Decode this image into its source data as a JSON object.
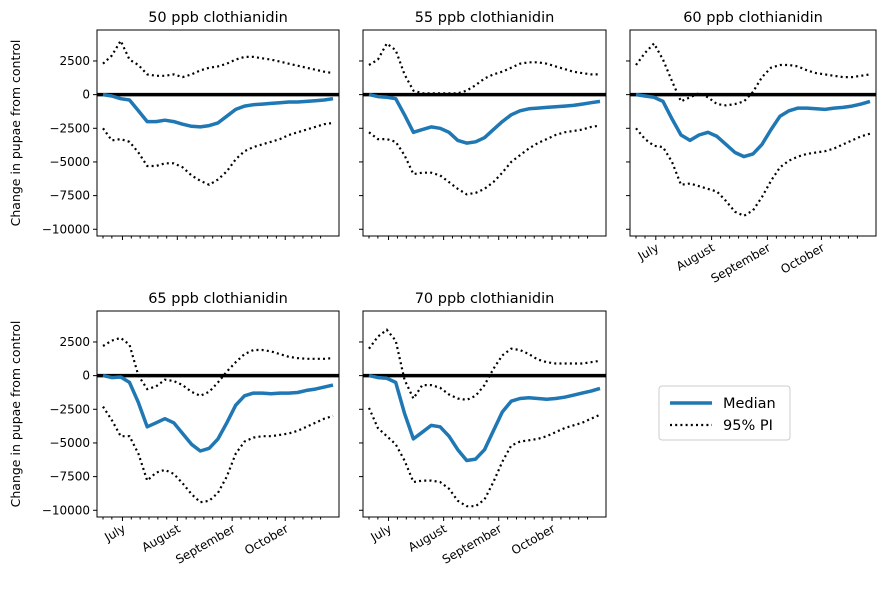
{
  "figure": {
    "ylabel": "Change in pupae from control",
    "legend": {
      "placement": "center-right",
      "median_label": "Median",
      "pi_label": "95% PI"
    },
    "colors": {
      "median": "#1f77b4",
      "pi": "#000000",
      "zero_line": "#000000"
    }
  },
  "chart_data": [
    {
      "type": "line",
      "title": "50 ppb clothianidin",
      "xlabel": "",
      "ylabel": "Change in pupae from control",
      "x_ticks": [],
      "y_ticks": [
        "2500",
        "0",
        "−2500",
        "−5000",
        "−7500",
        "−10000"
      ],
      "ylim": [
        -10500,
        4800
      ],
      "x": [
        "Jun 20",
        "Jun 25",
        "Jun 30",
        "Jul 5",
        "Jul 10",
        "Jul 15",
        "Jul 20",
        "Jul 25",
        "Jul 30",
        "Aug 4",
        "Aug 9",
        "Aug 14",
        "Aug 19",
        "Aug 24",
        "Aug 29",
        "Sep 3",
        "Sep 8",
        "Sep 13",
        "Sep 18",
        "Sep 23",
        "Sep 28",
        "Oct 3",
        "Oct 8",
        "Oct 13",
        "Oct 18",
        "Oct 23",
        "Oct 28"
      ],
      "series": [
        {
          "name": "Median",
          "values": [
            0,
            -100,
            -300,
            -400,
            -1200,
            -2000,
            -2000,
            -1900,
            -2000,
            -2200,
            -2350,
            -2400,
            -2300,
            -2100,
            -1600,
            -1100,
            -850,
            -750,
            -700,
            -650,
            -600,
            -550,
            -550,
            -500,
            -450,
            -400,
            -300
          ]
        },
        {
          "name": "95% PI upper",
          "values": [
            2300,
            2900,
            4000,
            2600,
            2200,
            1500,
            1400,
            1400,
            1500,
            1300,
            1500,
            1800,
            2000,
            2100,
            2300,
            2600,
            2800,
            2800,
            2700,
            2600,
            2450,
            2300,
            2150,
            2000,
            1850,
            1700,
            1600
          ]
        },
        {
          "name": "95% PI lower",
          "values": [
            -2500,
            -3400,
            -3300,
            -3500,
            -4300,
            -5300,
            -5300,
            -5100,
            -5100,
            -5400,
            -6000,
            -6400,
            -6700,
            -6300,
            -5700,
            -4800,
            -4200,
            -3900,
            -3700,
            -3500,
            -3300,
            -3000,
            -2800,
            -2600,
            -2400,
            -2200,
            -2100
          ]
        }
      ]
    },
    {
      "type": "line",
      "title": "55 ppb clothianidin",
      "xlabel": "",
      "ylabel": "",
      "x_ticks": [],
      "y_ticks": [],
      "ylim": [
        -10500,
        4800
      ],
      "x": [
        "Jun 20",
        "Jun 25",
        "Jun 30",
        "Jul 5",
        "Jul 10",
        "Jul 15",
        "Jul 20",
        "Jul 25",
        "Jul 30",
        "Aug 4",
        "Aug 9",
        "Aug 14",
        "Aug 19",
        "Aug 24",
        "Aug 29",
        "Sep 3",
        "Sep 8",
        "Sep 13",
        "Sep 18",
        "Sep 23",
        "Sep 28",
        "Oct 3",
        "Oct 8",
        "Oct 13",
        "Oct 18",
        "Oct 23",
        "Oct 28"
      ],
      "series": [
        {
          "name": "Median",
          "values": [
            0,
            -150,
            -200,
            -300,
            -1500,
            -2800,
            -2600,
            -2400,
            -2500,
            -2800,
            -3400,
            -3600,
            -3500,
            -3200,
            -2600,
            -2000,
            -1500,
            -1200,
            -1050,
            -1000,
            -950,
            -900,
            -850,
            -800,
            -700,
            -600,
            -500
          ]
        },
        {
          "name": "95% PI upper",
          "values": [
            2200,
            2600,
            3800,
            3300,
            1500,
            300,
            100,
            100,
            100,
            100,
            100,
            300,
            700,
            1200,
            1500,
            1700,
            2000,
            2300,
            2400,
            2400,
            2300,
            2100,
            1900,
            1700,
            1600,
            1500,
            1500
          ]
        },
        {
          "name": "95% PI lower",
          "values": [
            -2800,
            -3300,
            -3300,
            -3500,
            -4500,
            -5900,
            -5800,
            -5800,
            -6000,
            -6500,
            -7000,
            -7400,
            -7300,
            -7000,
            -6500,
            -5800,
            -5000,
            -4500,
            -4000,
            -3600,
            -3300,
            -3000,
            -2800,
            -2700,
            -2600,
            -2400,
            -2300
          ]
        }
      ]
    },
    {
      "type": "line",
      "title": "60 ppb clothianidin",
      "xlabel": "",
      "ylabel": "",
      "x_ticks": [
        "July",
        "August",
        "September",
        "October"
      ],
      "y_ticks": [],
      "ylim": [
        -10500,
        4800
      ],
      "x": [
        "Jun 20",
        "Jun 25",
        "Jun 30",
        "Jul 5",
        "Jul 10",
        "Jul 15",
        "Jul 20",
        "Jul 25",
        "Jul 30",
        "Aug 4",
        "Aug 9",
        "Aug 14",
        "Aug 19",
        "Aug 24",
        "Aug 29",
        "Sep 3",
        "Sep 8",
        "Sep 13",
        "Sep 18",
        "Sep 23",
        "Sep 28",
        "Oct 3",
        "Oct 8",
        "Oct 13",
        "Oct 18",
        "Oct 23",
        "Oct 28"
      ],
      "series": [
        {
          "name": "Median",
          "values": [
            0,
            -100,
            -200,
            -500,
            -1800,
            -3000,
            -3400,
            -3000,
            -2800,
            -3100,
            -3700,
            -4300,
            -4600,
            -4400,
            -3700,
            -2600,
            -1600,
            -1200,
            -1000,
            -1000,
            -1050,
            -1100,
            -1000,
            -950,
            -850,
            -700,
            -500
          ]
        },
        {
          "name": "95% PI upper",
          "values": [
            2200,
            3100,
            3800,
            2600,
            1000,
            -500,
            -200,
            100,
            -200,
            -700,
            -800,
            -700,
            -500,
            200,
            1300,
            2000,
            2200,
            2200,
            2100,
            1800,
            1600,
            1500,
            1400,
            1300,
            1300,
            1400,
            1500
          ]
        },
        {
          "name": "95% PI lower",
          "values": [
            -2500,
            -3300,
            -3800,
            -3900,
            -5000,
            -6700,
            -6600,
            -6800,
            -7000,
            -7200,
            -7900,
            -8700,
            -9000,
            -8600,
            -7600,
            -6400,
            -5400,
            -4900,
            -4600,
            -4400,
            -4300,
            -4200,
            -4000,
            -3700,
            -3400,
            -3100,
            -2900
          ]
        }
      ]
    },
    {
      "type": "line",
      "title": "65 ppb clothianidin",
      "xlabel": "",
      "ylabel": "Change in pupae from control",
      "x_ticks": [
        "July",
        "August",
        "September",
        "October"
      ],
      "y_ticks": [
        "2500",
        "0",
        "−2500",
        "−5000",
        "−7500",
        "−10000"
      ],
      "ylim": [
        -10500,
        4800
      ],
      "x": [
        "Jun 20",
        "Jun 25",
        "Jun 30",
        "Jul 5",
        "Jul 10",
        "Jul 15",
        "Jul 20",
        "Jul 25",
        "Jul 30",
        "Aug 4",
        "Aug 9",
        "Aug 14",
        "Aug 19",
        "Aug 24",
        "Aug 29",
        "Sep 3",
        "Sep 8",
        "Sep 13",
        "Sep 18",
        "Sep 23",
        "Sep 28",
        "Oct 3",
        "Oct 8",
        "Oct 13",
        "Oct 18",
        "Oct 23",
        "Oct 28"
      ],
      "series": [
        {
          "name": "Median",
          "values": [
            0,
            -150,
            -100,
            -500,
            -2000,
            -3800,
            -3500,
            -3200,
            -3500,
            -4300,
            -5100,
            -5600,
            -5400,
            -4700,
            -3500,
            -2200,
            -1500,
            -1300,
            -1300,
            -1350,
            -1300,
            -1300,
            -1250,
            -1100,
            -1000,
            -850,
            -700
          ]
        },
        {
          "name": "95% PI upper",
          "values": [
            2200,
            2600,
            2800,
            2300,
            0,
            -1000,
            -800,
            -300,
            -400,
            -700,
            -1200,
            -1500,
            -1200,
            -500,
            300,
            1000,
            1600,
            1900,
            1900,
            1800,
            1600,
            1400,
            1300,
            1250,
            1250,
            1250,
            1300
          ]
        },
        {
          "name": "95% PI lower",
          "values": [
            -2300,
            -3300,
            -4500,
            -4500,
            -5800,
            -7800,
            -7200,
            -7000,
            -7300,
            -8000,
            -8800,
            -9400,
            -9300,
            -8700,
            -7500,
            -5800,
            -4900,
            -4600,
            -4500,
            -4500,
            -4400,
            -4300,
            -4100,
            -3800,
            -3500,
            -3200,
            -3000
          ]
        }
      ]
    },
    {
      "type": "line",
      "title": "70 ppb clothianidin",
      "xlabel": "",
      "ylabel": "",
      "x_ticks": [
        "July",
        "August",
        "September",
        "October"
      ],
      "y_ticks": [],
      "ylim": [
        -10500,
        4800
      ],
      "x": [
        "Jun 20",
        "Jun 25",
        "Jun 30",
        "Jul 5",
        "Jul 10",
        "Jul 15",
        "Jul 20",
        "Jul 25",
        "Jul 30",
        "Aug 4",
        "Aug 9",
        "Aug 14",
        "Aug 19",
        "Aug 24",
        "Aug 29",
        "Sep 3",
        "Sep 8",
        "Sep 13",
        "Sep 18",
        "Sep 23",
        "Sep 28",
        "Oct 3",
        "Oct 8",
        "Oct 13",
        "Oct 18",
        "Oct 23",
        "Oct 28"
      ],
      "series": [
        {
          "name": "Median",
          "values": [
            0,
            -150,
            -200,
            -500,
            -2800,
            -4700,
            -4200,
            -3700,
            -3800,
            -4500,
            -5500,
            -6300,
            -6200,
            -5500,
            -4100,
            -2700,
            -1900,
            -1700,
            -1650,
            -1700,
            -1750,
            -1700,
            -1600,
            -1450,
            -1300,
            -1150,
            -950
          ]
        },
        {
          "name": "95% PI upper",
          "values": [
            2000,
            2900,
            3400,
            2600,
            -300,
            -1700,
            -700,
            -700,
            -900,
            -1400,
            -1700,
            -1800,
            -1500,
            -700,
            500,
            1500,
            2000,
            1900,
            1600,
            1200,
            1000,
            900,
            900,
            900,
            900,
            1000,
            1100
          ]
        },
        {
          "name": "95% PI lower",
          "values": [
            -2400,
            -3900,
            -4500,
            -5100,
            -6300,
            -7900,
            -7800,
            -7800,
            -7900,
            -8400,
            -9300,
            -9700,
            -9700,
            -9200,
            -7900,
            -6400,
            -5200,
            -4900,
            -4800,
            -4700,
            -4500,
            -4200,
            -3900,
            -3700,
            -3500,
            -3200,
            -2900
          ]
        }
      ]
    }
  ]
}
